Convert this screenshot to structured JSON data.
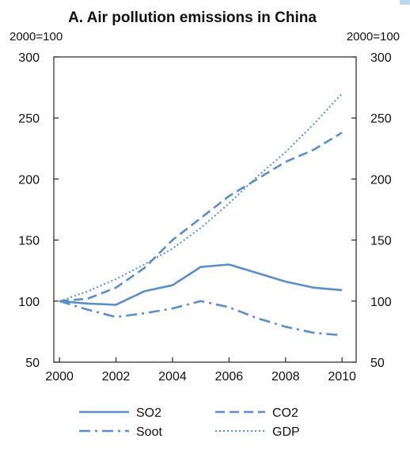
{
  "chart_data": {
    "type": "line",
    "title": "A. Air pollution emissions in China",
    "ylabel_left": "2000=100",
    "ylabel_right": "2000=100",
    "x": [
      2000,
      2001,
      2002,
      2003,
      2004,
      2005,
      2006,
      2007,
      2008,
      2009,
      2010
    ],
    "xticks": [
      "2000",
      "2002",
      "2004",
      "2006",
      "2008",
      "2010"
    ],
    "xtick_values": [
      2000,
      2002,
      2004,
      2006,
      2008,
      2010
    ],
    "xlim": [
      1999.8,
      2010.5
    ],
    "ylim": [
      50,
      300
    ],
    "yticks": [
      "50",
      "100",
      "150",
      "200",
      "250",
      "300"
    ],
    "ytick_values": [
      50,
      100,
      150,
      200,
      250,
      300
    ],
    "grid": false,
    "legend_position": "bottom",
    "series": [
      {
        "name": "SO2",
        "style": "solid",
        "values": [
          100,
          98,
          97,
          108,
          113,
          128,
          130,
          123,
          116,
          111,
          109
        ]
      },
      {
        "name": "CO2",
        "style": "dashed",
        "values": [
          100,
          102,
          111,
          127,
          150,
          168,
          186,
          200,
          214,
          224,
          238
        ]
      },
      {
        "name": "Soot",
        "style": "dashdot",
        "values": [
          100,
          93,
          87,
          90,
          94,
          100,
          95,
          86,
          79,
          74,
          72
        ]
      },
      {
        "name": "GDP",
        "style": "dotted",
        "values": [
          100,
          108,
          118,
          130,
          143,
          160,
          180,
          202,
          222,
          245,
          270
        ]
      }
    ],
    "colors": {
      "line": "#5b8ec9",
      "axis": "#222222",
      "text": "#111111"
    }
  }
}
